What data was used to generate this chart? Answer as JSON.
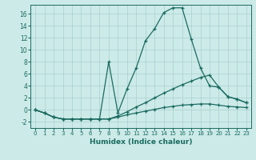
{
  "xlabel": "Humidex (Indice chaleur)",
  "bg_color": "#cceae8",
  "grid_color": "#aacfcd",
  "line_color": "#1a6b60",
  "xlim": [
    -0.5,
    23.5
  ],
  "ylim": [
    -3,
    17.5
  ],
  "xticks": [
    0,
    1,
    2,
    3,
    4,
    5,
    6,
    7,
    8,
    9,
    10,
    11,
    12,
    13,
    14,
    15,
    16,
    17,
    18,
    19,
    20,
    21,
    22,
    23
  ],
  "yticks": [
    -2,
    0,
    2,
    4,
    6,
    8,
    10,
    12,
    14,
    16
  ],
  "series": [
    {
      "x": [
        0,
        1,
        2,
        3,
        4,
        5,
        6,
        7,
        8,
        9,
        10,
        11,
        12,
        13,
        14,
        15,
        16,
        17,
        18,
        19,
        20,
        21,
        22,
        23
      ],
      "y": [
        0,
        -0.5,
        -1.2,
        -1.5,
        -1.5,
        -1.5,
        -1.5,
        -1.5,
        -1.5,
        -1.2,
        -0.8,
        -0.5,
        -0.2,
        0.1,
        0.4,
        0.6,
        0.8,
        0.9,
        1.0,
        1.0,
        0.8,
        0.6,
        0.5,
        0.4
      ]
    },
    {
      "x": [
        0,
        1,
        2,
        3,
        4,
        5,
        6,
        7,
        8,
        9,
        10,
        11,
        12,
        13,
        14,
        15,
        16,
        17,
        18,
        19,
        20,
        21,
        22,
        23
      ],
      "y": [
        0,
        -0.5,
        -1.2,
        -1.5,
        -1.5,
        -1.5,
        -1.5,
        -1.5,
        -1.5,
        -1.0,
        -0.3,
        0.5,
        1.2,
        2.0,
        2.8,
        3.5,
        4.2,
        4.8,
        5.4,
        5.8,
        3.8,
        2.2,
        1.8,
        1.2
      ]
    },
    {
      "x": [
        0,
        1,
        2,
        3,
        4,
        5,
        6,
        7,
        8,
        9,
        10,
        11,
        12,
        13,
        14,
        15,
        16,
        17,
        18,
        19,
        20,
        21,
        22,
        23
      ],
      "y": [
        0,
        -0.5,
        -1.2,
        -1.5,
        -1.5,
        -1.5,
        -1.5,
        -1.5,
        8.0,
        -0.5,
        3.5,
        7.0,
        11.5,
        13.5,
        16.2,
        17.0,
        17.0,
        11.8,
        7.0,
        4.0,
        3.8,
        2.2,
        1.8,
        1.2
      ]
    }
  ]
}
